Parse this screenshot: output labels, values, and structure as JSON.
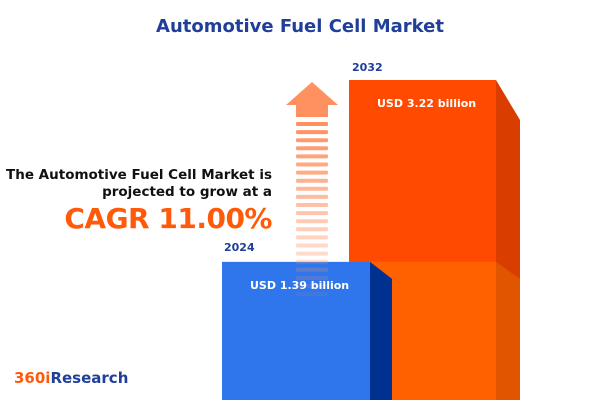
{
  "title": "Automotive Fuel Cell Market",
  "description": {
    "line1": "The Automotive Fuel Cell Market is",
    "line2": "projected to grow at a",
    "cagr": "CAGR 11.00%"
  },
  "logo": {
    "part1": "360i",
    "part2": "Research"
  },
  "colors": {
    "title": "#1f3f99",
    "bar_2024": "#2f76ec",
    "bar_2024_side": "#003090",
    "bar_2032": "#ff4a00",
    "bar_2032_lower": "#ff6000",
    "bar_2032_side": "#d93d00",
    "arrow": "#ff9060",
    "cagr": "#ff5a0a"
  },
  "chart_data": {
    "type": "bar",
    "categories": [
      "2024",
      "2032"
    ],
    "values": [
      1.39,
      3.22
    ],
    "unit": "USD billion",
    "labels": [
      "USD 1.39 billion",
      "USD 3.22 billion"
    ],
    "cagr": "11.00%"
  }
}
